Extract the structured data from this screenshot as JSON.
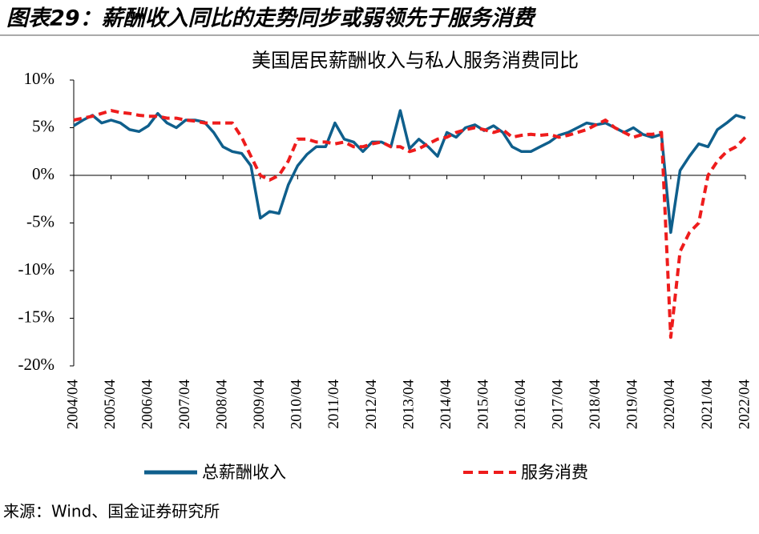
{
  "header": {
    "title": "图表29：薪酬收入同比的走势同步或弱领先于服务消费"
  },
  "source": "来源：Wind、国金证券研究所",
  "chart_data": {
    "type": "line",
    "title": "美国居民薪酬收入与私人服务消费同比",
    "x": [
      "2004/04",
      "2004/07",
      "2004/10",
      "2005/01",
      "2005/04",
      "2005/07",
      "2005/10",
      "2006/01",
      "2006/04",
      "2006/07",
      "2006/10",
      "2007/01",
      "2007/04",
      "2007/07",
      "2007/10",
      "2008/01",
      "2008/04",
      "2008/07",
      "2008/10",
      "2009/01",
      "2009/04",
      "2009/07",
      "2009/10",
      "2010/01",
      "2010/04",
      "2010/07",
      "2010/10",
      "2011/01",
      "2011/04",
      "2011/07",
      "2011/10",
      "2012/01",
      "2012/04",
      "2012/07",
      "2012/10",
      "2013/01",
      "2013/04",
      "2013/07",
      "2013/10",
      "2014/01",
      "2014/04",
      "2014/07",
      "2014/10",
      "2015/01",
      "2015/04",
      "2015/07",
      "2015/10",
      "2016/01",
      "2016/04",
      "2016/07",
      "2016/10",
      "2017/01",
      "2017/04",
      "2017/07",
      "2017/10",
      "2018/01",
      "2018/04",
      "2018/07",
      "2018/10",
      "2019/01",
      "2019/04",
      "2019/07",
      "2019/10",
      "2020/01",
      "2020/04",
      "2020/07",
      "2020/10",
      "2021/01",
      "2021/04",
      "2021/07",
      "2021/10",
      "2022/01",
      "2022/04"
    ],
    "series": [
      {
        "name": "总薪酬收入",
        "color": "#0f5f8c",
        "dash": false,
        "values": [
          5.2,
          5.8,
          6.3,
          5.5,
          5.8,
          5.5,
          4.8,
          4.6,
          5.2,
          6.5,
          5.5,
          5.0,
          5.8,
          5.8,
          5.6,
          4.5,
          3.0,
          2.5,
          2.3,
          1.0,
          -4.5,
          -3.8,
          -4.0,
          -1.0,
          1.0,
          2.2,
          3.0,
          3.0,
          5.5,
          3.8,
          3.5,
          2.5,
          3.5,
          3.5,
          3.0,
          6.8,
          2.8,
          3.8,
          3.0,
          2.0,
          4.5,
          4.0,
          5.0,
          5.3,
          4.7,
          5.2,
          4.5,
          3.0,
          2.5,
          2.5,
          3.0,
          3.5,
          4.2,
          4.5,
          5.0,
          5.5,
          5.3,
          5.5,
          5.0,
          4.5,
          5.0,
          4.3,
          4.0,
          4.3,
          -6.0,
          0.5,
          2.0,
          3.3,
          3.0,
          4.8,
          5.5,
          6.3,
          6.0
        ]
      },
      {
        "name": "服务消费",
        "color": "#ee1c1c",
        "dash": true,
        "values": [
          5.8,
          6.0,
          6.2,
          6.5,
          6.8,
          6.6,
          6.5,
          6.3,
          6.2,
          6.2,
          6.0,
          6.0,
          5.8,
          5.7,
          5.5,
          5.5,
          5.5,
          5.5,
          4.0,
          2.0,
          0.0,
          -0.5,
          0.0,
          1.5,
          3.8,
          3.8,
          3.5,
          3.5,
          3.3,
          3.5,
          3.0,
          3.0,
          3.3,
          3.5,
          3.0,
          3.0,
          2.5,
          2.8,
          3.3,
          3.8,
          4.0,
          4.5,
          4.8,
          5.0,
          4.8,
          4.5,
          4.8,
          4.0,
          4.2,
          4.3,
          4.2,
          4.3,
          4.0,
          4.2,
          4.5,
          4.8,
          5.3,
          5.8,
          5.0,
          4.5,
          4.0,
          4.3,
          4.3,
          4.5,
          -17.0,
          -8.0,
          -6.0,
          -5.0,
          0.0,
          1.5,
          2.5,
          3.0,
          4.0
        ]
      }
    ],
    "ylim": [
      -20,
      10
    ],
    "yticks": [
      {
        "value": 10,
        "label": "10%"
      },
      {
        "value": 5,
        "label": "5%"
      },
      {
        "value": 0,
        "label": "0%"
      },
      {
        "value": -5,
        "label": "-5%"
      },
      {
        "value": -10,
        "label": "-10%"
      },
      {
        "value": -15,
        "label": "-15%"
      },
      {
        "value": -20,
        "label": "-20%"
      }
    ],
    "xlim": [
      "2004/04",
      "2022/04"
    ],
    "xticks": [
      "2004/04",
      "2005/04",
      "2006/04",
      "2007/04",
      "2008/04",
      "2009/04",
      "2010/04",
      "2011/04",
      "2012/04",
      "2013/04",
      "2014/04",
      "2015/04",
      "2016/04",
      "2017/04",
      "2018/04",
      "2019/04",
      "2020/04",
      "2021/04",
      "2022/04"
    ],
    "legend": "bottom"
  }
}
